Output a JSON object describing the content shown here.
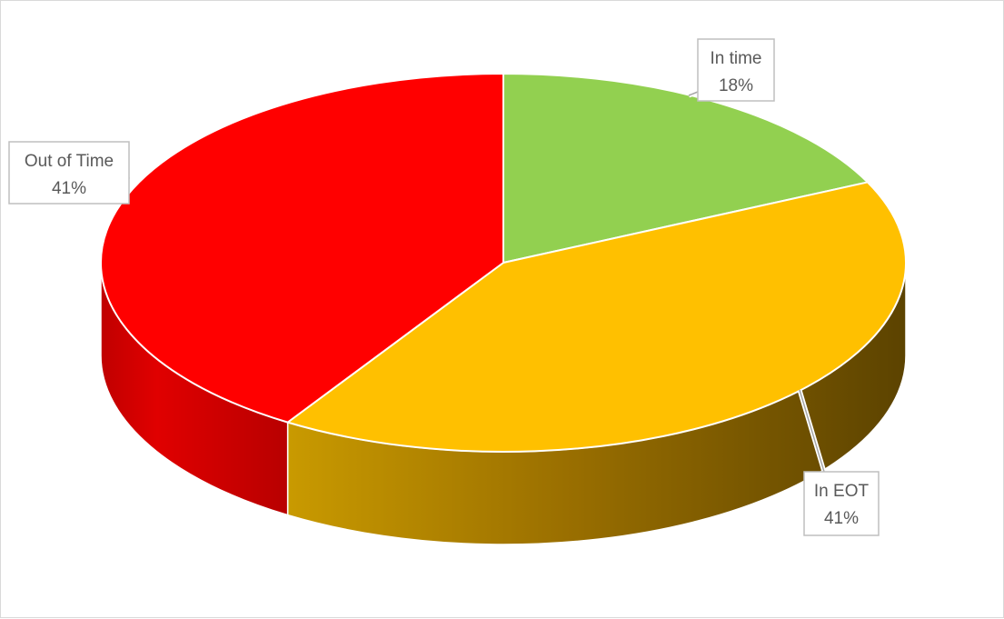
{
  "chart_data": {
    "type": "pie",
    "title": "",
    "three_d": true,
    "categories": [
      "In time",
      "In EOT",
      "Out of Time"
    ],
    "values": [
      18,
      41,
      41
    ],
    "unit": "%",
    "data_labels": [
      {
        "category": "In time",
        "value": "18%"
      },
      {
        "category": "In EOT",
        "value": "41%"
      },
      {
        "category": "Out of Time",
        "value": "41%"
      }
    ],
    "colors": {
      "In time": "#92d050",
      "In EOT": "#ffc000",
      "Out of Time": "#ff0000"
    },
    "legend": "none"
  }
}
